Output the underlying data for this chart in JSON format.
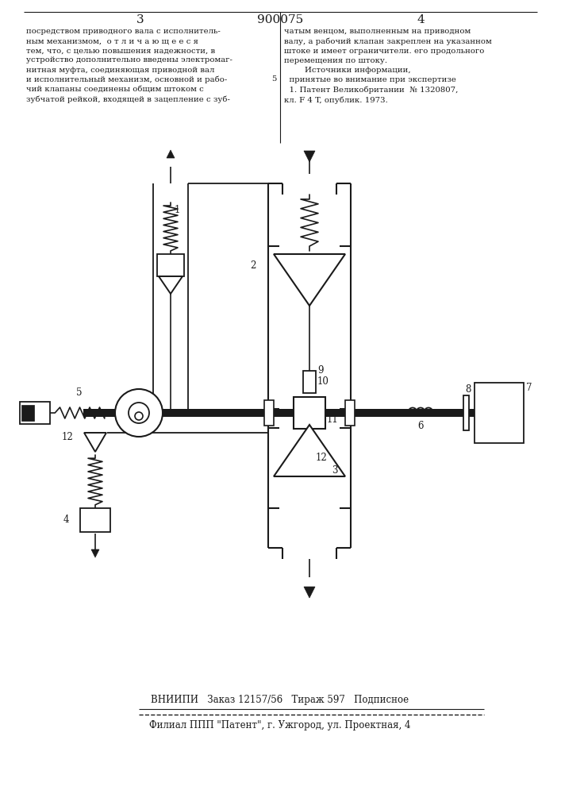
{
  "bg_color": "#ffffff",
  "line_color": "#1a1a1a",
  "page_num_left": "3",
  "page_num_center": "900075",
  "page_num_right": "4",
  "text_col1": "посредством приводного вала с исполнитель-\nным механизмом,  о т л и ч а ю щ е е с я\nтем, что, с целью повышения надежности, в\nустройство дополнительно введены электромаг-\nнитная муфта, соединяющая приводной вал\nи исполнительный механизм, основной и рабо-\nчий клапаны соединены общим штоком с\nзубчатой рейкой, входящей в зацепление с зуб-",
  "text_col2_line": "5",
  "text_col2": "чатым венцом, выполненным на приводном\nвалу, а рабочий клапан закреплен на указанном\nштоке и имеет ограничители. его продольного\nперемещения по штоку.\n        Источники информации,\n  принятые во внимание при экспертизе\n  1. Патент Великобритании  № 1320807,\nкл. F 4 T, опублик. 1973.",
  "footer_line1": "ВНИИПИ   Заказ 12157/56   Тираж 597   Подписное",
  "footer_line2": "Филиал ППП \"Патент\", г. Ужгород, ул. Проектная, 4"
}
